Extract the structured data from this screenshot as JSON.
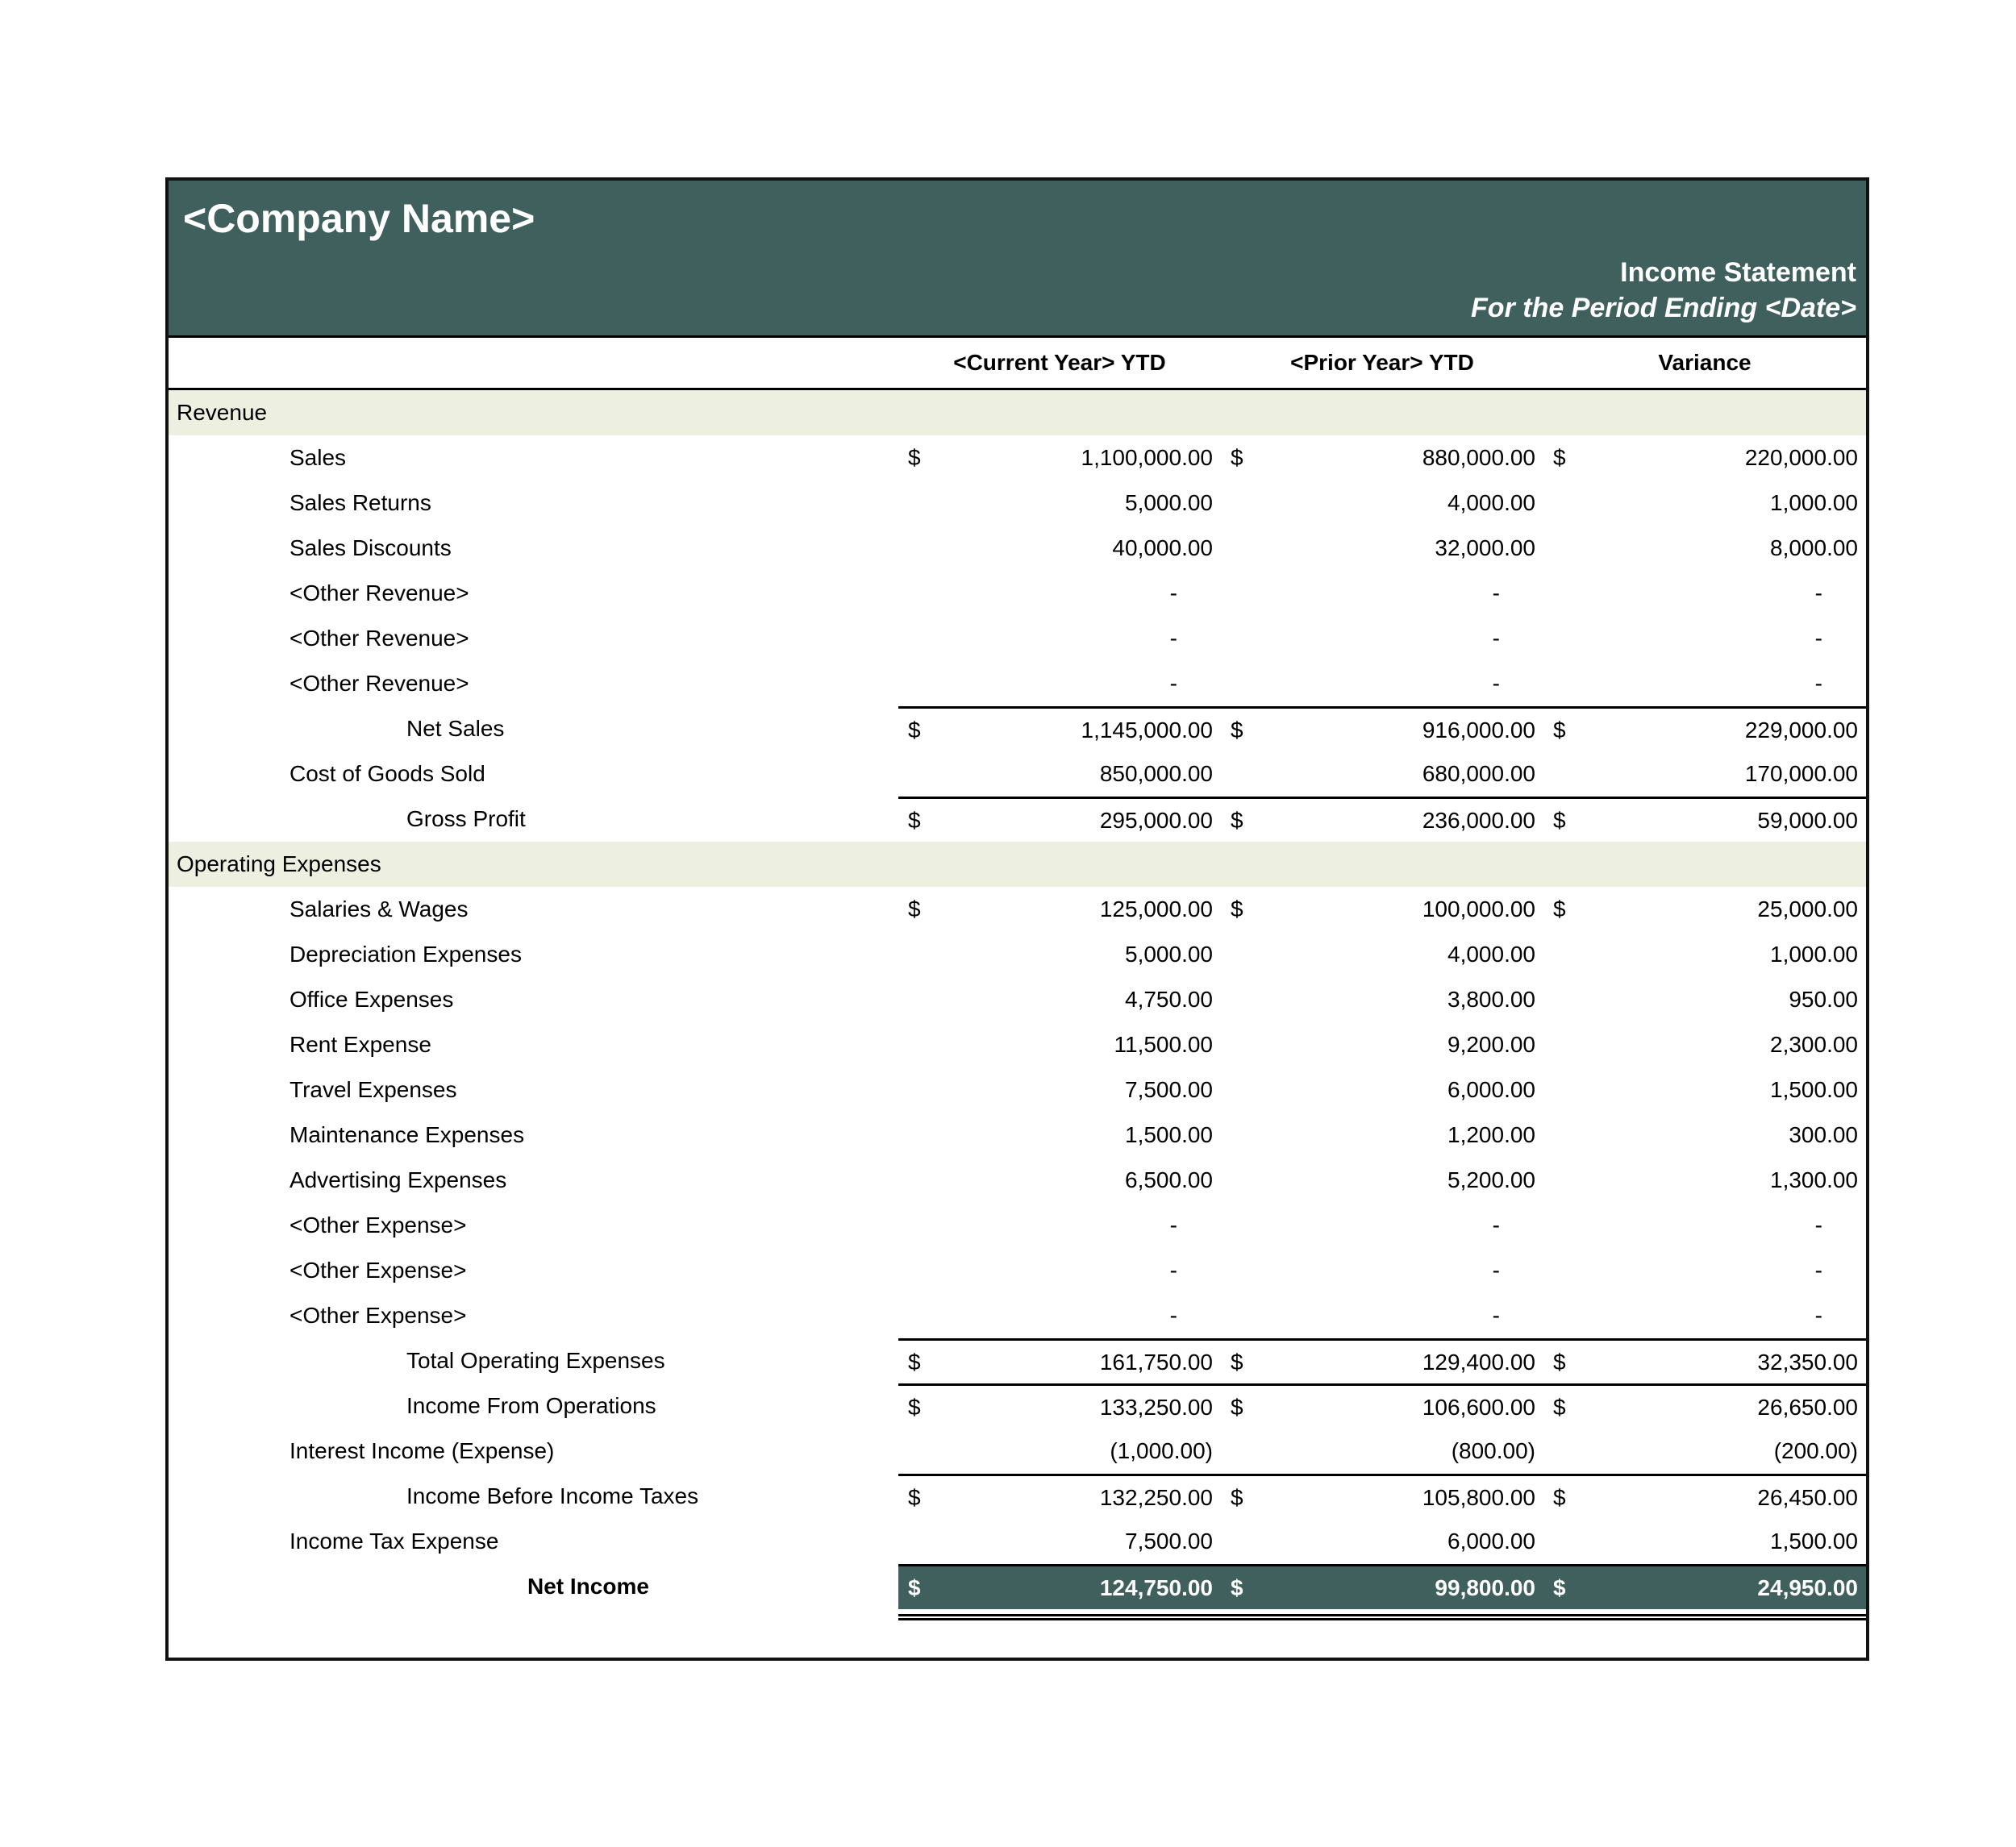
{
  "header": {
    "company_name": "<Company Name>",
    "title": "Income Statement",
    "period": "For the Period Ending <Date>"
  },
  "columns": [
    "<Current Year> YTD",
    "<Prior Year> YTD",
    "Variance"
  ],
  "currency_symbol": "$",
  "colors": {
    "header_bg": "#40605E",
    "header_text": "#FFFFFF",
    "section_bg": "#EDEFE0",
    "net_income_bg": "#40605E"
  },
  "rows": [
    {
      "label": "Revenue",
      "type": "section"
    },
    {
      "label": "Sales",
      "type": "item",
      "indent": 1,
      "dollar": true,
      "values": [
        "1,100,000.00",
        "880,000.00",
        "220,000.00"
      ]
    },
    {
      "label": "Sales Returns",
      "type": "item",
      "indent": 1,
      "values": [
        "5,000.00",
        "4,000.00",
        "1,000.00"
      ]
    },
    {
      "label": "Sales Discounts",
      "type": "item",
      "indent": 1,
      "values": [
        "40,000.00",
        "32,000.00",
        "8,000.00"
      ]
    },
    {
      "label": "<Other Revenue>",
      "type": "item",
      "indent": 1,
      "values": [
        "-",
        "-",
        "-"
      ]
    },
    {
      "label": "<Other Revenue>",
      "type": "item",
      "indent": 1,
      "values": [
        "-",
        "-",
        "-"
      ]
    },
    {
      "label": "<Other Revenue>",
      "type": "item",
      "indent": 1,
      "values": [
        "-",
        "-",
        "-"
      ]
    },
    {
      "label": "Net Sales",
      "type": "subtotal",
      "indent": 2,
      "dollar": true,
      "topline": true,
      "values": [
        "1,145,000.00",
        "916,000.00",
        "229,000.00"
      ]
    },
    {
      "label": "Cost of Goods Sold",
      "type": "item",
      "indent": 1,
      "values": [
        "850,000.00",
        "680,000.00",
        "170,000.00"
      ]
    },
    {
      "label": "Gross Profit",
      "type": "subtotal",
      "indent": 2,
      "dollar": true,
      "topline": true,
      "values": [
        "295,000.00",
        "236,000.00",
        "59,000.00"
      ]
    },
    {
      "label": "Operating Expenses",
      "type": "section"
    },
    {
      "label": "Salaries & Wages",
      "type": "item",
      "indent": 1,
      "dollar": true,
      "values": [
        "125,000.00",
        "100,000.00",
        "25,000.00"
      ]
    },
    {
      "label": "Depreciation Expenses",
      "type": "item",
      "indent": 1,
      "values": [
        "5,000.00",
        "4,000.00",
        "1,000.00"
      ]
    },
    {
      "label": "Office Expenses",
      "type": "item",
      "indent": 1,
      "values": [
        "4,750.00",
        "3,800.00",
        "950.00"
      ]
    },
    {
      "label": "Rent Expense",
      "type": "item",
      "indent": 1,
      "values": [
        "11,500.00",
        "9,200.00",
        "2,300.00"
      ]
    },
    {
      "label": "Travel Expenses",
      "type": "item",
      "indent": 1,
      "values": [
        "7,500.00",
        "6,000.00",
        "1,500.00"
      ]
    },
    {
      "label": "Maintenance Expenses",
      "type": "item",
      "indent": 1,
      "values": [
        "1,500.00",
        "1,200.00",
        "300.00"
      ]
    },
    {
      "label": "Advertising Expenses",
      "type": "item",
      "indent": 1,
      "values": [
        "6,500.00",
        "5,200.00",
        "1,300.00"
      ]
    },
    {
      "label": "<Other Expense>",
      "type": "item",
      "indent": 1,
      "values": [
        "-",
        "-",
        "-"
      ]
    },
    {
      "label": "<Other Expense>",
      "type": "item",
      "indent": 1,
      "values": [
        "-",
        "-",
        "-"
      ]
    },
    {
      "label": "<Other Expense>",
      "type": "item",
      "indent": 1,
      "values": [
        "-",
        "-",
        "-"
      ]
    },
    {
      "label": "Total Operating Expenses",
      "type": "subtotal",
      "indent": 2,
      "dollar": true,
      "topline": true,
      "values": [
        "161,750.00",
        "129,400.00",
        "32,350.00"
      ]
    },
    {
      "label": "Income From Operations",
      "type": "subtotal",
      "indent": 2,
      "dollar": true,
      "topline": true,
      "values": [
        "133,250.00",
        "106,600.00",
        "26,650.00"
      ]
    },
    {
      "label": "Interest Income (Expense)",
      "type": "item",
      "indent": 1,
      "values": [
        "(1,000.00)",
        "(800.00)",
        "(200.00)"
      ]
    },
    {
      "label": "Income Before Income Taxes",
      "type": "subtotal",
      "indent": 2,
      "dollar": true,
      "topline": true,
      "values": [
        "132,250.00",
        "105,800.00",
        "26,450.00"
      ]
    },
    {
      "label": "Income Tax Expense",
      "type": "item",
      "indent": 1,
      "values": [
        "7,500.00",
        "6,000.00",
        "1,500.00"
      ]
    },
    {
      "label": "Net Income",
      "type": "net",
      "indent": 3,
      "dollar": true,
      "values": [
        "124,750.00",
        "99,800.00",
        "24,950.00"
      ]
    }
  ]
}
